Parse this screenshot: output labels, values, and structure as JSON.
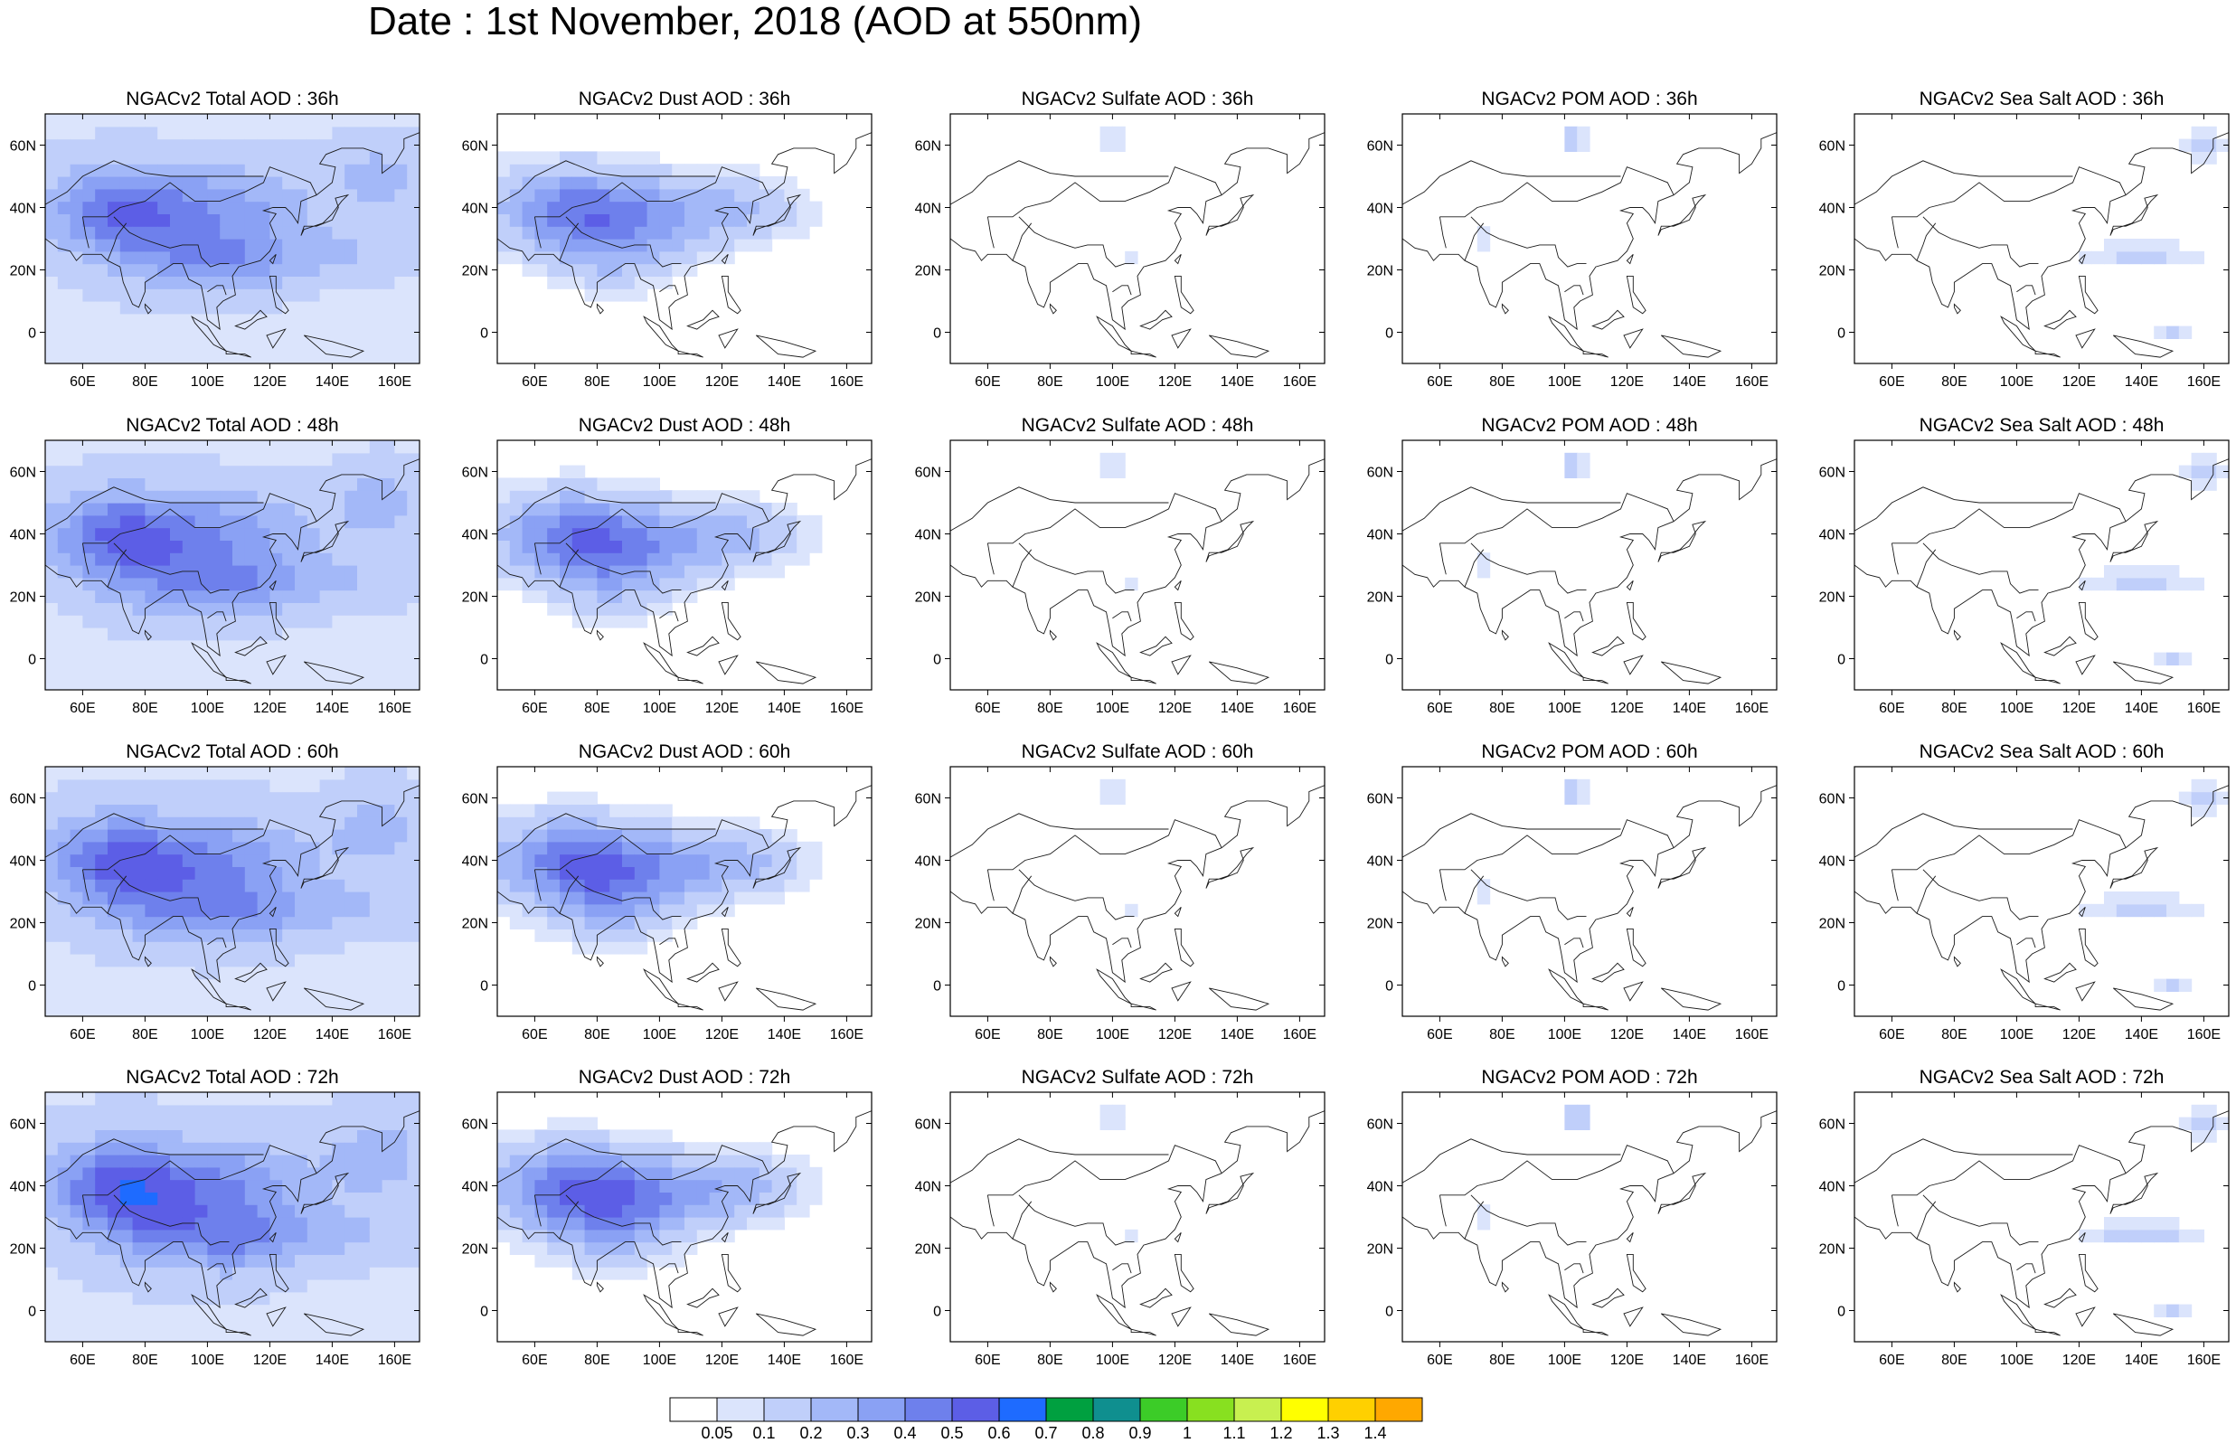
{
  "title": "Date : 1st November, 2018 (AOD at 550nm)",
  "rows": [
    {
      "hour": "36h",
      "titles": [
        "NGACv2 Total AOD : 36h",
        "NGACv2 Dust AOD : 36h",
        "NGACv2 Sulfate AOD : 36h",
        "NGACv2 POM AOD : 36h",
        "NGACv2 Sea Salt AOD : 36h"
      ]
    },
    {
      "hour": "48h",
      "titles": [
        "NGACv2 Total AOD : 48h",
        "NGACv2 Dust AOD : 48h",
        "NGACv2 Sulfate AOD : 48h",
        "NGACv2 POM AOD : 48h",
        "NGACv2 Sea Salt AOD : 48h"
      ]
    },
    {
      "hour": "60h",
      "titles": [
        "NGACv2 Total AOD : 60h",
        "NGACv2 Dust AOD : 60h",
        "NGACv2 Sulfate AOD : 60h",
        "NGACv2 POM AOD : 60h",
        "NGACv2 Sea Salt AOD : 60h"
      ]
    },
    {
      "hour": "72h",
      "titles": [
        "NGACv2 Total AOD : 72h",
        "NGACv2 Dust AOD : 72h",
        "NGACv2 Sulfate AOD : 72h",
        "NGACv2 POM AOD : 72h",
        "NGACv2 Sea Salt  AOD : 72h"
      ]
    }
  ],
  "species": [
    "Total",
    "Dust",
    "Sulfate",
    "POM",
    "Sea Salt"
  ],
  "x_ticks": [
    "60E",
    "80E",
    "100E",
    "120E",
    "140E",
    "160E"
  ],
  "x_tick_lons": [
    60,
    80,
    100,
    120,
    140,
    160
  ],
  "y_ticks": [
    "60N",
    "40N",
    "20N",
    "0"
  ],
  "y_tick_lats": [
    60,
    40,
    20,
    0
  ],
  "lon_range": [
    48,
    168
  ],
  "lat_range": [
    -10,
    70
  ],
  "colorbar": {
    "colors": [
      "#ffffff",
      "#dbe4fc",
      "#c0cffa",
      "#a3b8f8",
      "#8aa1f4",
      "#6e80ec",
      "#5c5ee6",
      "#1e6bff",
      "#00a040",
      "#0f8f8f",
      "#3ccc28",
      "#88e020",
      "#c8f050",
      "#ffff00",
      "#ffd000",
      "#ffa800",
      "#ff8000",
      "#ff4010",
      "#ff0000"
    ],
    "labels": [
      "0.05",
      "0.1",
      "0.2",
      "0.3",
      "0.4",
      "0.5",
      "0.6",
      "0.7",
      "0.8",
      "0.9",
      "1",
      "1.1",
      "1.2",
      "1.3",
      "1.4"
    ]
  },
  "landmask_color": "#1a1a1a",
  "aod_field": {
    "Total": {
      "base": 0.08,
      "blobs": [
        [
          70,
          40,
          22,
          14,
          0.35
        ],
        [
          105,
          40,
          30,
          14,
          0.25
        ],
        [
          110,
          22,
          18,
          10,
          0.2
        ],
        [
          85,
          25,
          20,
          12,
          0.18
        ],
        [
          140,
          25,
          25,
          8,
          0.12
        ],
        [
          155,
          50,
          15,
          12,
          0.15
        ]
      ]
    },
    "Dust": {
      "base": 0.0,
      "blobs": [
        [
          70,
          40,
          25,
          14,
          0.35
        ],
        [
          100,
          38,
          30,
          12,
          0.25
        ],
        [
          85,
          25,
          20,
          12,
          0.18
        ],
        [
          130,
          40,
          20,
          10,
          0.12
        ]
      ]
    },
    "Sulfate": {
      "base": 0.0,
      "blobs": [
        [
          100,
          62,
          6,
          4,
          0.12
        ],
        [
          105,
          25,
          4,
          4,
          0.08
        ]
      ]
    },
    "POM": {
      "base": 0.0,
      "blobs": [
        [
          103,
          62,
          4,
          4,
          0.2
        ],
        [
          75,
          30,
          3,
          3,
          0.1
        ]
      ]
    },
    "SeaSalt": {
      "base": 0.0,
      "blobs": [
        [
          140,
          25,
          20,
          4,
          0.12
        ],
        [
          160,
          60,
          8,
          5,
          0.14
        ],
        [
          150,
          0,
          8,
          4,
          0.1
        ]
      ]
    }
  }
}
